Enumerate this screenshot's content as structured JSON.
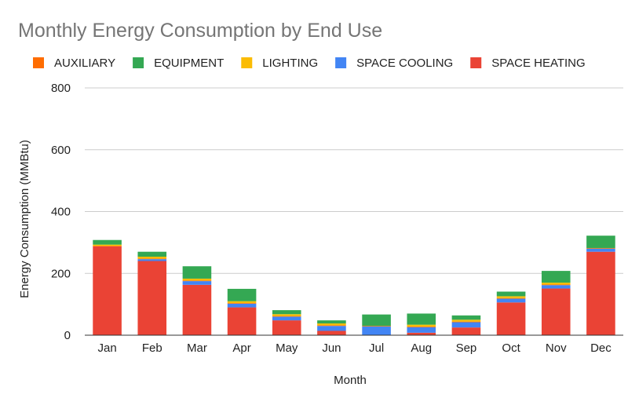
{
  "chart_data": {
    "type": "bar",
    "stacked": true,
    "title": "Monthly Energy Consumption by End Use",
    "xlabel": "Month",
    "ylabel": "Energy Consumption (MMBtu)",
    "ylim": [
      0,
      800
    ],
    "yticks": [
      "0",
      "200",
      "400",
      "600",
      "800"
    ],
    "grid": true,
    "legend_position": "top",
    "categories": [
      "Jan",
      "Feb",
      "Mar",
      "Apr",
      "May",
      "Jun",
      "Jul",
      "Aug",
      "Sep",
      "Oct",
      "Nov",
      "Dec"
    ],
    "series": [
      {
        "name": "SPACE HEATING",
        "color": "#ea4335",
        "values": [
          287,
          240,
          163,
          90,
          48,
          14,
          0,
          8,
          25,
          106,
          151,
          270
        ]
      },
      {
        "name": "SPACE COOLING",
        "color": "#4285f4",
        "values": [
          0,
          6,
          12,
          12,
          12,
          16,
          28,
          18,
          17,
          12,
          11,
          10
        ]
      },
      {
        "name": "AUXILIARY",
        "color": "#ff6d01",
        "values": [
          2,
          2,
          2,
          2,
          2,
          2,
          2,
          2,
          2,
          2,
          2,
          2
        ]
      },
      {
        "name": "LIGHTING",
        "color": "#fbbc04",
        "values": [
          4,
          6,
          6,
          6,
          6,
          6,
          0,
          6,
          6,
          6,
          6,
          0
        ]
      },
      {
        "name": "EQUIPMENT",
        "color": "#34a853",
        "values": [
          15,
          16,
          40,
          40,
          13,
          10,
          37,
          36,
          14,
          15,
          38,
          40
        ]
      }
    ],
    "legend_order": [
      "AUXILIARY",
      "EQUIPMENT",
      "LIGHTING",
      "SPACE COOLING",
      "SPACE HEATING"
    ]
  }
}
